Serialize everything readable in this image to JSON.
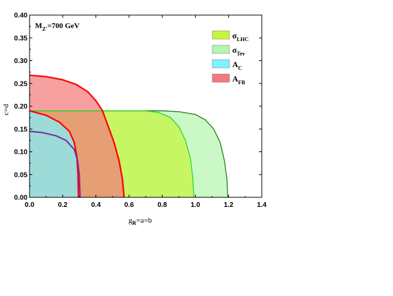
{
  "chart_data": {
    "type": "area",
    "annotation": {
      "main": "M",
      "sub": "Z'",
      "rest": "=700 GeV"
    },
    "xlabel": {
      "main": "g",
      "sub": "R",
      "rest": "=a=b"
    },
    "ylabel": "c=d",
    "xlim": [
      0,
      1.4
    ],
    "ylim": [
      0,
      0.4
    ],
    "xticks": [
      "0.0",
      "0.2",
      "0.4",
      "0.6",
      "0.8",
      "1.0",
      "1.2",
      "1.4"
    ],
    "yticks": [
      "0.00",
      "0.05",
      "0.10",
      "0.15",
      "0.20",
      "0.25",
      "0.30",
      "0.35",
      "0.40"
    ],
    "grid": false,
    "legend_position": "top-right",
    "series": [
      {
        "name": "σ_Tev",
        "label_main": "σ",
        "label_sub": "Tev",
        "fill": "#b5f5b0",
        "stroke": "#2c7a22",
        "points": [
          [
            0,
            0.19
          ],
          [
            0.3,
            0.19
          ],
          [
            0.6,
            0.19
          ],
          [
            0.8,
            0.19
          ],
          [
            0.9,
            0.188
          ],
          [
            1.0,
            0.182
          ],
          [
            1.06,
            0.17
          ],
          [
            1.11,
            0.15
          ],
          [
            1.15,
            0.12
          ],
          [
            1.175,
            0.08
          ],
          [
            1.19,
            0.04
          ],
          [
            1.195,
            0
          ]
        ]
      },
      {
        "name": "σ_LHC",
        "label_main": "σ",
        "label_sub": "LHC",
        "fill": "#c6f53e",
        "stroke": "#2fd42f",
        "points": [
          [
            0,
            0.19
          ],
          [
            0.3,
            0.19
          ],
          [
            0.6,
            0.19
          ],
          [
            0.7,
            0.19
          ],
          [
            0.78,
            0.186
          ],
          [
            0.85,
            0.175
          ],
          [
            0.9,
            0.155
          ],
          [
            0.94,
            0.125
          ],
          [
            0.97,
            0.085
          ],
          [
            0.985,
            0.04
          ],
          [
            0.99,
            0
          ]
        ]
      },
      {
        "name": "A_FB",
        "label_main": "A",
        "label_sub": "FB",
        "fill": "#f27b7b",
        "stroke": "#ff0000",
        "points": [
          [
            0,
            0.268
          ],
          [
            0.1,
            0.265
          ],
          [
            0.2,
            0.258
          ],
          [
            0.28,
            0.248
          ],
          [
            0.35,
            0.232
          ],
          [
            0.4,
            0.212
          ],
          [
            0.44,
            0.19
          ],
          [
            0.47,
            0.16
          ],
          [
            0.51,
            0.12
          ],
          [
            0.54,
            0.08
          ],
          [
            0.56,
            0.04
          ],
          [
            0.57,
            0
          ]
        ]
      },
      {
        "name": "A_C",
        "label_main": "A",
        "label_sub": "C",
        "fill": "#7ff2ff",
        "stroke": "#ff0000",
        "points": [
          [
            0,
            0.19
          ],
          [
            0.1,
            0.18
          ],
          [
            0.18,
            0.165
          ],
          [
            0.24,
            0.145
          ],
          [
            0.27,
            0.12
          ],
          [
            0.285,
            0.09
          ],
          [
            0.292,
            0.05
          ],
          [
            0.295,
            0
          ]
        ]
      }
    ],
    "extra_curve": {
      "stroke": "#7a2aa0",
      "points": [
        [
          0,
          0.145
        ],
        [
          0.08,
          0.142
        ],
        [
          0.16,
          0.135
        ],
        [
          0.22,
          0.125
        ],
        [
          0.27,
          0.105
        ],
        [
          0.29,
          0.08
        ],
        [
          0.3,
          0.05
        ],
        [
          0.305,
          0
        ]
      ]
    }
  }
}
